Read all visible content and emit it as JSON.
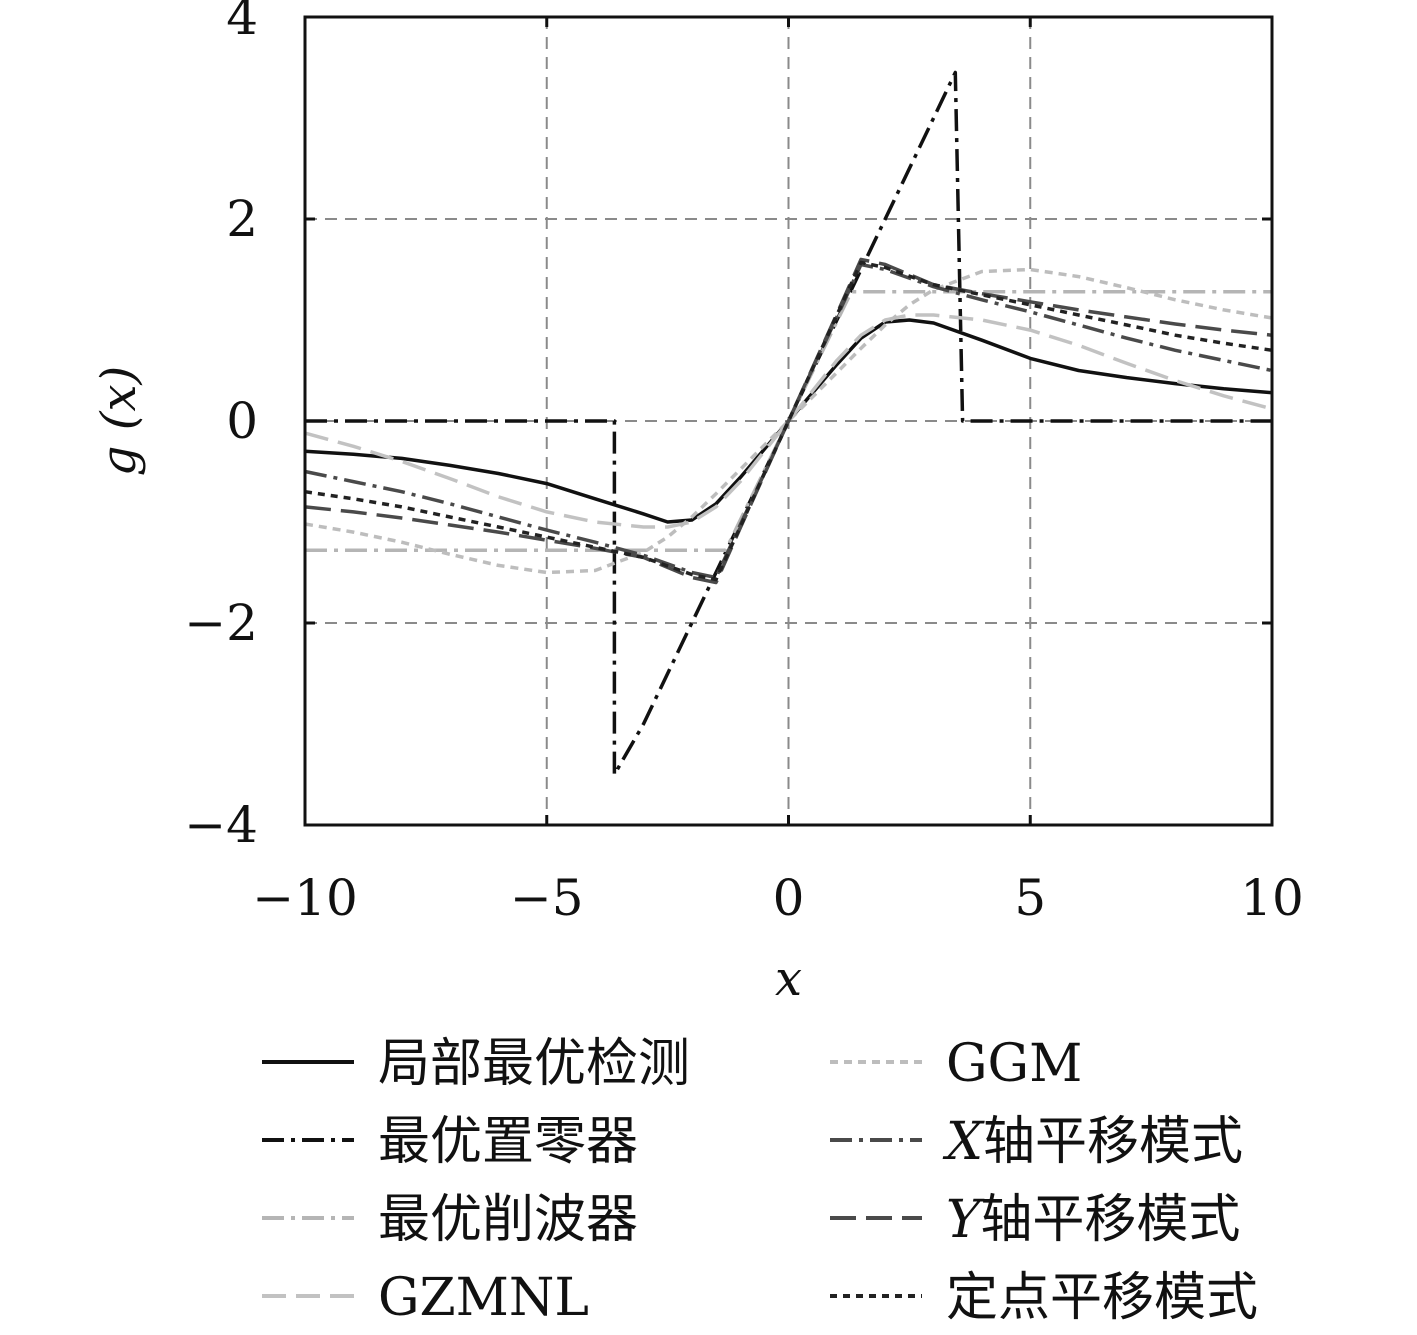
{
  "chart_data": {
    "type": "line",
    "title": "",
    "xlabel": "x",
    "ylabel": "g (x)",
    "xlim": [
      -10,
      10
    ],
    "ylim": [
      -4,
      4
    ],
    "xticks": [
      -10,
      -5,
      0,
      5,
      10
    ],
    "yticks": [
      -4,
      -2,
      0,
      2,
      4
    ],
    "xtick_labels": [
      "−10",
      "−5",
      "0",
      "5",
      "10"
    ],
    "ytick_labels": [
      "−4",
      "−2",
      "0",
      "2",
      "4"
    ],
    "grid": true,
    "legend_position": "bottom",
    "series": [
      {
        "name": "局部最优检测",
        "color": "#111111",
        "dash": "",
        "x": [
          -10,
          -9,
          -8,
          -7,
          -6,
          -5,
          -4,
          -3,
          -2.5,
          -2,
          -1.5,
          -1,
          -0.5,
          0,
          0.5,
          1,
          1.5,
          2,
          2.5,
          3,
          4,
          5,
          6,
          7,
          8,
          9,
          10
        ],
        "y": [
          -0.3,
          -0.33,
          -0.37,
          -0.44,
          -0.52,
          -0.62,
          -0.77,
          -0.92,
          -1.0,
          -0.98,
          -0.82,
          -0.56,
          -0.28,
          0,
          0.28,
          0.56,
          0.82,
          0.98,
          1.0,
          0.97,
          0.8,
          0.62,
          0.5,
          0.43,
          0.37,
          0.32,
          0.28
        ]
      },
      {
        "name": "最优置零器",
        "color": "#111111",
        "dash": "22,7,4,7",
        "x": [
          -10,
          -3.6,
          -3.6,
          -3,
          -2,
          -1,
          0,
          1,
          2,
          3,
          3.45,
          3.6,
          10
        ],
        "y": [
          0,
          0,
          -3.5,
          -3.0,
          -2.0,
          -1.0,
          0,
          1.0,
          2.0,
          3.0,
          3.45,
          0,
          0
        ]
      },
      {
        "name": "最优削波器",
        "color": "#b5b5b5",
        "dash": "22,7,4,7",
        "x": [
          -10,
          -1.3,
          1.3,
          10
        ],
        "y": [
          -1.28,
          -1.28,
          1.28,
          1.28
        ]
      },
      {
        "name": "GZMNL",
        "color": "#c2c2c2",
        "dash": "24,10",
        "x": [
          -10,
          -9,
          -8,
          -7,
          -6,
          -5,
          -4,
          -3,
          -2.5,
          -2,
          -1.5,
          -1,
          -0.5,
          0,
          0.5,
          1,
          1.5,
          2,
          2.5,
          3,
          4,
          5,
          6,
          7,
          8,
          9,
          10
        ],
        "y": [
          -0.12,
          -0.25,
          -0.4,
          -0.57,
          -0.75,
          -0.9,
          -1.0,
          -1.05,
          -1.05,
          -1.0,
          -0.85,
          -0.6,
          -0.3,
          0,
          0.3,
          0.6,
          0.85,
          1.0,
          1.05,
          1.05,
          1.0,
          0.9,
          0.75,
          0.57,
          0.4,
          0.25,
          0.12
        ]
      },
      {
        "name": "GGM",
        "color": "#bdbdbd",
        "dash": "8,6",
        "x": [
          -10,
          -9,
          -8,
          -7,
          -6,
          -5,
          -4,
          -3,
          -2.5,
          -2,
          -1.5,
          -1,
          -0.5,
          0,
          0.5,
          1,
          1.5,
          2,
          2.5,
          3,
          4,
          5,
          6,
          7,
          8,
          9,
          10
        ],
        "y": [
          -1.02,
          -1.1,
          -1.2,
          -1.32,
          -1.43,
          -1.5,
          -1.48,
          -1.3,
          -1.15,
          -0.95,
          -0.72,
          -0.48,
          -0.24,
          0,
          0.24,
          0.48,
          0.72,
          0.95,
          1.15,
          1.3,
          1.48,
          1.5,
          1.43,
          1.32,
          1.2,
          1.1,
          1.02
        ]
      },
      {
        "name": "X轴平移模式",
        "color": "#4a4a4a",
        "dash": "22,7,4,7",
        "x": [
          -10,
          -9,
          -8,
          -7,
          -6,
          -5,
          -4,
          -3,
          -2,
          -1.5,
          -1,
          -0.5,
          0,
          0.5,
          1,
          1.5,
          2,
          3,
          4,
          5,
          6,
          7,
          8,
          9,
          10
        ],
        "y": [
          -0.5,
          -0.6,
          -0.7,
          -0.82,
          -0.95,
          -1.08,
          -1.2,
          -1.33,
          -1.5,
          -1.55,
          -1.03,
          -0.52,
          0,
          0.52,
          1.03,
          1.55,
          1.5,
          1.33,
          1.2,
          1.08,
          0.95,
          0.82,
          0.7,
          0.6,
          0.5
        ]
      },
      {
        "name": "Y轴平移模式",
        "color": "#4a4a4a",
        "dash": "26,10",
        "x": [
          -10,
          -9,
          -8,
          -7,
          -6,
          -5,
          -4,
          -3,
          -2,
          -1.5,
          -1,
          -0.5,
          0,
          0.5,
          1,
          1.5,
          2,
          3,
          4,
          5,
          6,
          7,
          8,
          9,
          10
        ],
        "y": [
          -0.85,
          -0.9,
          -0.96,
          -1.03,
          -1.1,
          -1.18,
          -1.26,
          -1.35,
          -1.55,
          -1.6,
          -1.06,
          -0.53,
          0,
          0.53,
          1.06,
          1.6,
          1.55,
          1.35,
          1.26,
          1.18,
          1.1,
          1.03,
          0.96,
          0.9,
          0.85
        ]
      },
      {
        "name": "定点平移模式",
        "color": "#222222",
        "dash": "7,6",
        "x": [
          -10,
          -9,
          -8,
          -7,
          -6,
          -5,
          -4,
          -3,
          -2,
          -1.5,
          -1,
          -0.5,
          0,
          0.5,
          1,
          1.5,
          2,
          3,
          4,
          5,
          6,
          7,
          8,
          9,
          10
        ],
        "y": [
          -0.7,
          -0.77,
          -0.85,
          -0.95,
          -1.05,
          -1.15,
          -1.25,
          -1.35,
          -1.52,
          -1.57,
          -1.05,
          -0.52,
          0,
          0.52,
          1.05,
          1.57,
          1.52,
          1.35,
          1.25,
          1.15,
          1.05,
          0.95,
          0.85,
          0.77,
          0.7
        ]
      }
    ]
  }
}
